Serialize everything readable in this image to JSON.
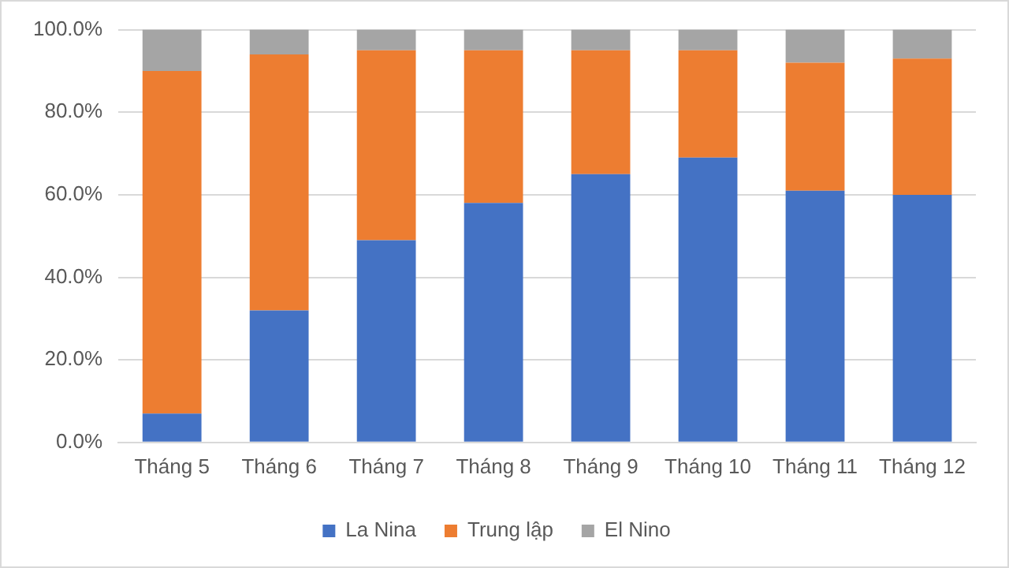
{
  "chart_data": {
    "type": "bar",
    "stacked": true,
    "categories": [
      "Tháng 5",
      "Tháng 6",
      "Tháng 7",
      "Tháng 8",
      "Tháng 9",
      "Tháng 10",
      "Tháng 11",
      "Tháng 12"
    ],
    "series": [
      {
        "name": "La Nina",
        "color": "#4472c4",
        "values": [
          7,
          32,
          49,
          58,
          65,
          69,
          61,
          60
        ]
      },
      {
        "name": "Trung lập",
        "color": "#ed7d31",
        "values": [
          83,
          62,
          46,
          37,
          30,
          26,
          31,
          33
        ]
      },
      {
        "name": "El Nino",
        "color": "#a5a5a5",
        "values": [
          10,
          6,
          5,
          5,
          5,
          5,
          8,
          7
        ]
      }
    ],
    "ylim": [
      0,
      100
    ],
    "yticks": [
      {
        "value": 0,
        "label": "0.0%"
      },
      {
        "value": 20,
        "label": "20.0%"
      },
      {
        "value": 40,
        "label": "40.0%"
      },
      {
        "value": 60,
        "label": "60.0%"
      },
      {
        "value": 80,
        "label": "80.0%"
      },
      {
        "value": 100,
        "label": "100.0%"
      }
    ],
    "grid": "y",
    "legend": "bottom"
  }
}
